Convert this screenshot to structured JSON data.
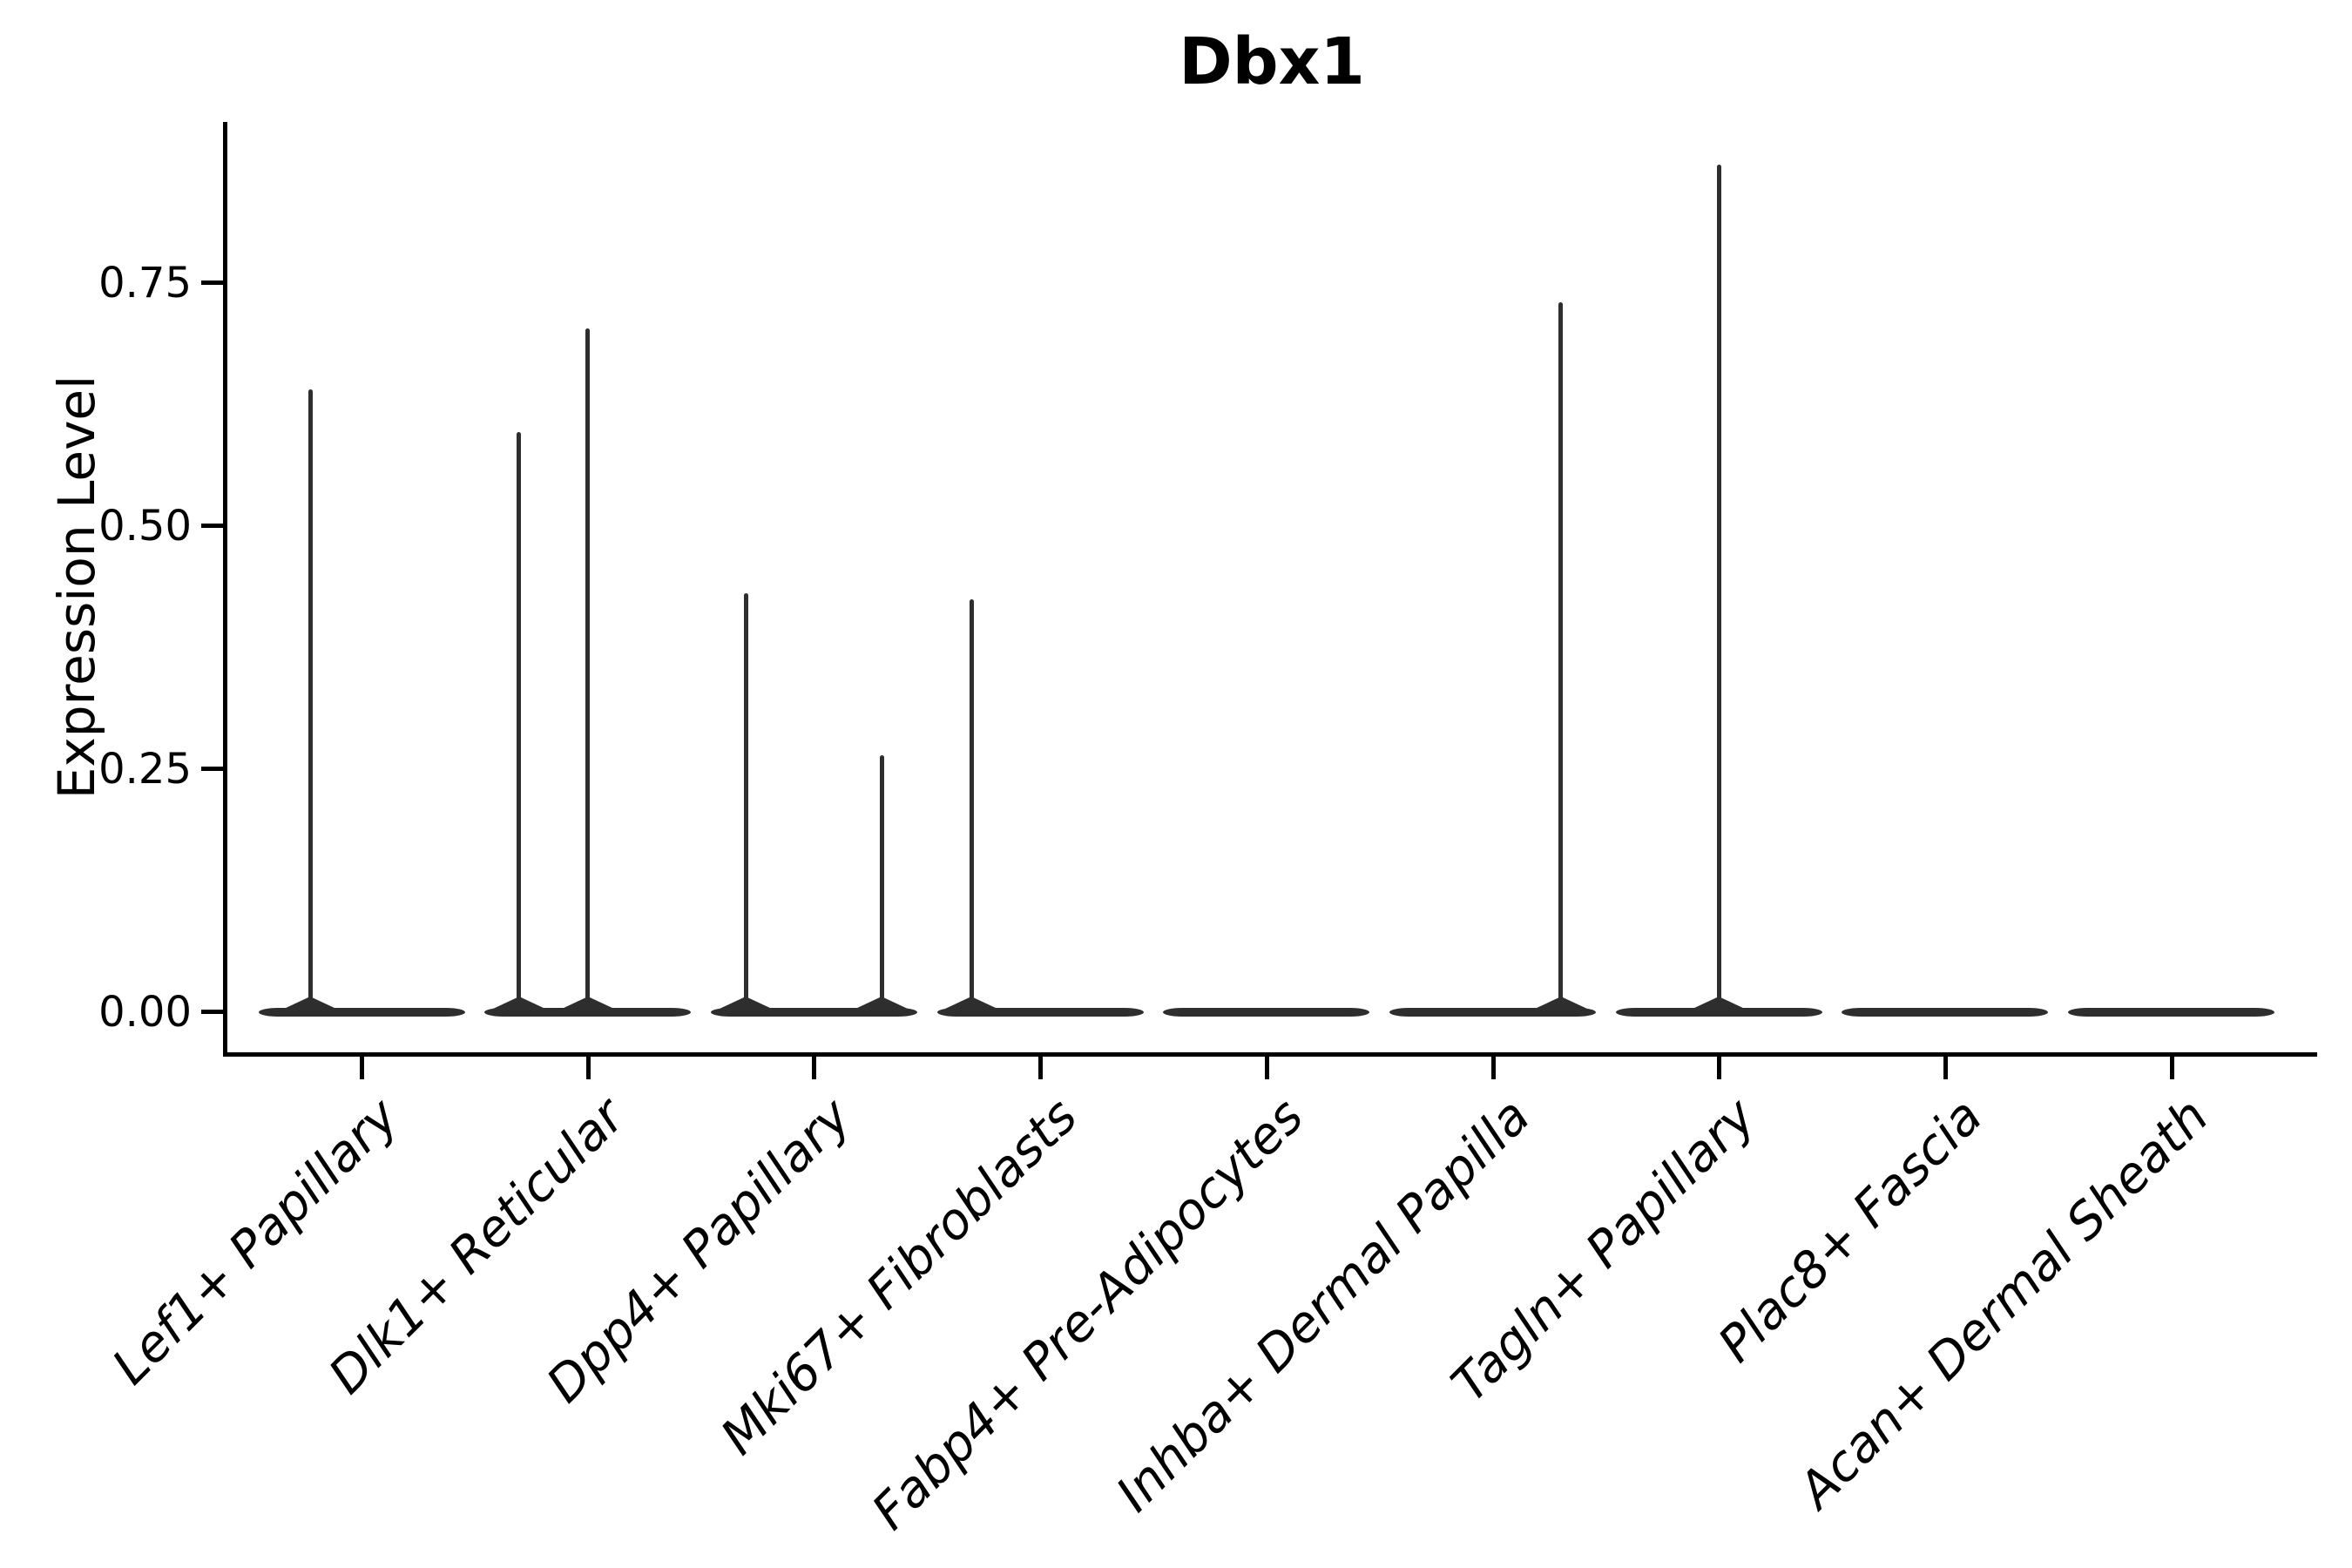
{
  "chart_data": {
    "type": "violin",
    "title": "Dbx1",
    "ylabel": "Expression Level",
    "xlabel": "",
    "ylim": [
      -0.04,
      0.92
    ],
    "grid": false,
    "legend": null,
    "yticks": [
      {
        "label": "0.00",
        "value": 0.0
      },
      {
        "label": "0.25",
        "value": 0.25
      },
      {
        "label": "0.50",
        "value": 0.5
      },
      {
        "label": "0.75",
        "value": 0.75
      }
    ],
    "colors": {
      "violin": "#2e2e2e",
      "axis": "#000000",
      "text": "#000000",
      "background": "#ffffff"
    },
    "categories": [
      {
        "label": "Lef1+ Papillary",
        "spikes": [
          {
            "dx": -59,
            "value": 0.641
          }
        ]
      },
      {
        "label": "Dlk1+ Reticular",
        "spikes": [
          {
            "dx": -79,
            "value": 0.597
          },
          {
            "dx": 0,
            "value": 0.703
          }
        ]
      },
      {
        "label": "Dpp4+ Papillary",
        "spikes": [
          {
            "dx": -78,
            "value": 0.431
          },
          {
            "dx": 78,
            "value": 0.264
          }
        ]
      },
      {
        "label": "Mki67+ Fibroblasts",
        "spikes": [
          {
            "dx": -79,
            "value": 0.425
          }
        ]
      },
      {
        "label": "Fabp4+ Pre-Adipocytes",
        "spikes": []
      },
      {
        "label": "Inhba+ Dermal Papilla",
        "spikes": [
          {
            "dx": 78,
            "value": 0.73
          }
        ]
      },
      {
        "label": "Tagln+ Papillary",
        "spikes": [
          {
            "dx": 0,
            "value": 0.872
          }
        ]
      },
      {
        "label": "Plac8+ Fascia",
        "spikes": []
      },
      {
        "label": "Acan+ Dermal Sheath",
        "spikes": []
      }
    ]
  }
}
